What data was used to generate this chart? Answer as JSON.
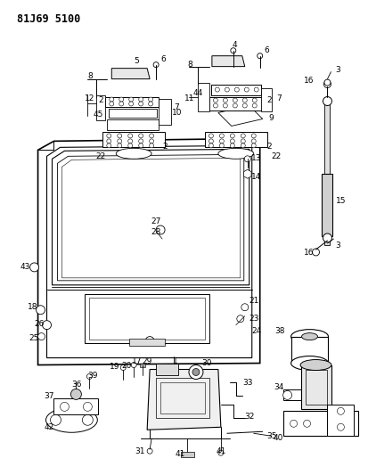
{
  "title": "81J69 5100",
  "bg_color": "#ffffff",
  "line_color": "#000000",
  "label_color": "#000000",
  "fig_width": 4.13,
  "fig_height": 5.33,
  "dpi": 100
}
